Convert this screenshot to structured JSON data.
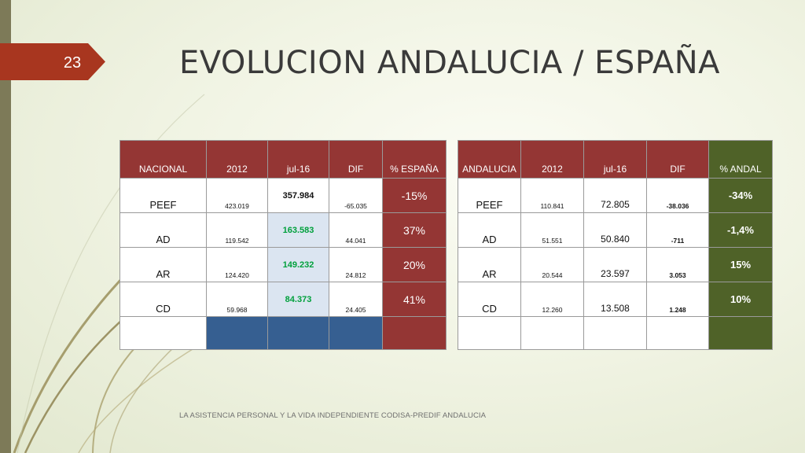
{
  "slide": {
    "number": "23",
    "title": "EVOLUCION ANDALUCIA / ESPAÑA",
    "footer": "LA ASISTENCIA PERSONAL Y LA VIDA INDEPENDIENTE CODISA-PREDIF ANDALUCIA"
  },
  "nacional": {
    "headers": [
      "NACIONAL",
      "2012",
      "jul-16",
      "DIF",
      "% ESPAÑA"
    ],
    "rows": [
      {
        "label": "PEEF",
        "y2012": "423.019",
        "jul16": "357.984",
        "dif": "-65.035",
        "pct": "-15%"
      },
      {
        "label": "AD",
        "y2012": "119.542",
        "jul16": "163.583",
        "dif": "44.041",
        "pct": "37%"
      },
      {
        "label": "AR",
        "y2012": "124.420",
        "jul16": "149.232",
        "dif": "24.812",
        "pct": "20%"
      },
      {
        "label": "CD",
        "y2012": "59.968",
        "jul16": "84.373",
        "dif": "24.405",
        "pct": "41%"
      }
    ]
  },
  "andalucia": {
    "headers": [
      "ANDALUCIA",
      "2012",
      "jul-16",
      "DIF",
      "% ANDAL"
    ],
    "rows": [
      {
        "label": "PEEF",
        "y2012": "110.841",
        "jul16": "72.805",
        "dif": "-38.036",
        "pct": "-34%"
      },
      {
        "label": "AD",
        "y2012": "51.551",
        "jul16": "50.840",
        "dif": "-711",
        "pct": "-1,4%"
      },
      {
        "label": "AR",
        "y2012": "20.544",
        "jul16": "23.597",
        "dif": "3.053",
        "pct": "15%"
      },
      {
        "label": "CD",
        "y2012": "12.260",
        "jul16": "13.508",
        "dif": "1.248",
        "pct": "10%"
      }
    ]
  },
  "colors": {
    "accent_red": "#943634",
    "accent_green": "#4f6228",
    "accent_blue": "#365f91",
    "badge": "#a8361f",
    "highlight_green_text": "#00a03c"
  }
}
